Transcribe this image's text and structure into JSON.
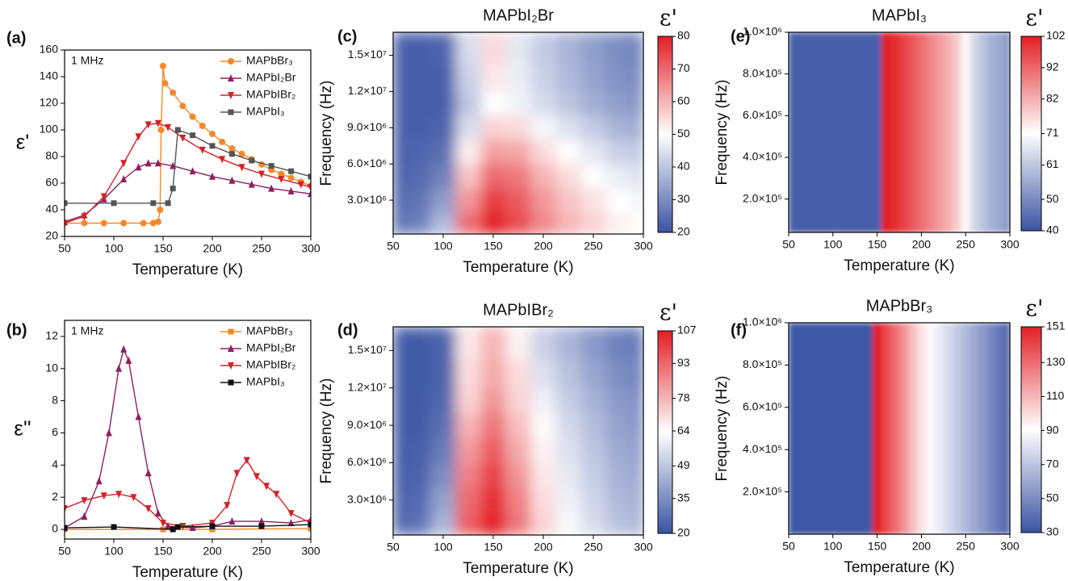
{
  "chart_data": [
    {
      "type": "line",
      "panel": "(a)",
      "annotation": "1 MHz",
      "xlabel": "Temperature (K)",
      "ylabel": "ε'",
      "xlim": [
        50,
        300
      ],
      "ylim": [
        20,
        160
      ],
      "xticks": [
        50,
        100,
        150,
        200,
        250,
        300
      ],
      "yticks": [
        20,
        40,
        60,
        80,
        100,
        120,
        140,
        160
      ],
      "legend": "upper right",
      "series": [
        {
          "name": "MAPbBr₃",
          "color": "#f5892a",
          "marker": "circle",
          "x": [
            50,
            70,
            90,
            110,
            130,
            140,
            145,
            147,
            148,
            150,
            152,
            160,
            170,
            180,
            190,
            200,
            210,
            220,
            230,
            240,
            250,
            260,
            270,
            280,
            290,
            300
          ],
          "values": [
            30,
            30,
            30,
            30,
            30,
            30,
            31,
            40,
            100,
            148,
            135,
            128,
            118,
            110,
            103,
            97,
            91,
            86,
            82,
            78,
            74,
            70,
            67,
            64,
            61,
            58
          ]
        },
        {
          "name": "MAPbI₂Br",
          "color": "#8e1f62",
          "marker": "triangle-up",
          "x": [
            50,
            70,
            90,
            110,
            125,
            135,
            145,
            160,
            180,
            200,
            220,
            240,
            260,
            280,
            300
          ],
          "values": [
            31,
            36,
            48,
            63,
            72,
            75,
            75,
            73,
            69,
            65,
            62,
            59,
            56,
            54,
            52
          ]
        },
        {
          "name": "MAPbIBr₂",
          "color": "#d62128",
          "marker": "triangle-down",
          "x": [
            50,
            70,
            90,
            110,
            125,
            135,
            145,
            155,
            170,
            190,
            210,
            230,
            250,
            270,
            290,
            300
          ],
          "values": [
            30,
            35,
            50,
            75,
            95,
            104,
            105,
            102,
            94,
            85,
            78,
            72,
            67,
            63,
            59,
            57
          ]
        },
        {
          "name": "MAPbI₃",
          "color": "#555555",
          "marker": "square",
          "x": [
            50,
            100,
            140,
            155,
            160,
            165,
            180,
            200,
            220,
            240,
            260,
            280,
            300
          ],
          "values": [
            45,
            45,
            45,
            45,
            56,
            100,
            96,
            88,
            82,
            77,
            73,
            69,
            65
          ]
        }
      ]
    },
    {
      "type": "line",
      "panel": "(b)",
      "annotation": "1 MHz",
      "xlabel": "Temperature (K)",
      "ylabel": "ε''",
      "xlim": [
        50,
        300
      ],
      "ylim": [
        -0.6,
        13
      ],
      "xticks": [
        50,
        100,
        150,
        200,
        250,
        300
      ],
      "yticks": [
        0,
        2,
        4,
        6,
        8,
        10,
        12
      ],
      "legend": "upper right",
      "series": [
        {
          "name": "MAPbBr₃",
          "color": "#f5892a",
          "marker": "square",
          "x": [
            50,
            150,
            200,
            300
          ],
          "values": [
            0,
            0,
            0,
            0.05
          ]
        },
        {
          "name": "MAPbI₂Br",
          "color": "#8e1f62",
          "marker": "triangle-up",
          "x": [
            50,
            70,
            85,
            95,
            105,
            110,
            115,
            125,
            135,
            145,
            155,
            180,
            200,
            220,
            250,
            280,
            300
          ],
          "values": [
            0.1,
            0.8,
            3,
            6,
            10,
            11.2,
            10.5,
            7,
            3.5,
            1,
            0.2,
            0.1,
            0.2,
            0.5,
            0.5,
            0.4,
            0.6
          ]
        },
        {
          "name": "MAPbIBr₂",
          "color": "#d62128",
          "marker": "triangle-down",
          "x": [
            50,
            70,
            90,
            105,
            120,
            135,
            150,
            170,
            200,
            215,
            225,
            235,
            245,
            255,
            265,
            280,
            300
          ],
          "values": [
            1.3,
            1.8,
            2.1,
            2.2,
            2,
            1.3,
            0.4,
            0.2,
            0.4,
            1.5,
            3.5,
            4.3,
            3.3,
            2.7,
            2.2,
            1,
            0.4
          ]
        },
        {
          "name": "MAPbI₃",
          "color": "#111111",
          "marker": "square",
          "x": [
            50,
            100,
            160,
            165,
            200,
            250,
            300
          ],
          "values": [
            0.1,
            0.15,
            0,
            0.15,
            0.2,
            0.2,
            0.3
          ]
        }
      ]
    },
    {
      "type": "heatmap",
      "panel": "(c)",
      "title": "MAPbI₂Br",
      "xlabel": "Temperature (K)",
      "ylabel": "Frequency (Hz)",
      "xlim": [
        50,
        300
      ],
      "ylim": [
        200000,
        16900000
      ],
      "xticks": [
        50,
        100,
        150,
        200,
        250,
        300
      ],
      "yticks": [
        {
          "value": 3000000,
          "label": "3.0×10⁶"
        },
        {
          "value": 6000000,
          "label": "6.0×10⁶"
        },
        {
          "value": 9000000,
          "label": "9.0×10⁶"
        },
        {
          "value": 12000000,
          "label": "1.2×10⁷"
        },
        {
          "value": 15000000,
          "label": "1.5×10⁷"
        }
      ],
      "x": [
        50,
        75,
        100,
        125,
        150,
        175,
        200,
        225,
        250,
        275,
        300
      ],
      "y": [
        1000000,
        3000000,
        5000000,
        7000000,
        9000000,
        11000000,
        13000000,
        15500000
      ],
      "z": [
        [
          24,
          28,
          38,
          70,
          80,
          74,
          66,
          60,
          56,
          52,
          50
        ],
        [
          23,
          26,
          33,
          64,
          76,
          72,
          64,
          58,
          54,
          50,
          48
        ],
        [
          22,
          24,
          28,
          58,
          70,
          68,
          60,
          55,
          50,
          47,
          44
        ],
        [
          22,
          23,
          25,
          52,
          63,
          62,
          55,
          50,
          46,
          42,
          40
        ],
        [
          22,
          22,
          23,
          44,
          56,
          55,
          49,
          45,
          41,
          37,
          35
        ],
        [
          22,
          22,
          22,
          40,
          50,
          48,
          44,
          40,
          36,
          33,
          31
        ],
        [
          22,
          22,
          22,
          42,
          53,
          47,
          42,
          38,
          34,
          31,
          29
        ],
        [
          22,
          22,
          23,
          44,
          55,
          46,
          41,
          37,
          33,
          30,
          28
        ]
      ],
      "colorbar_label": "ε'",
      "zlim": [
        20,
        80
      ],
      "zticks": [
        20,
        30,
        40,
        50,
        60,
        70,
        80
      ],
      "colormap": [
        "#3a53a4",
        "#ffffff",
        "#e31e24"
      ]
    },
    {
      "type": "heatmap",
      "panel": "(d)",
      "title": "MAPbIBr₂",
      "xlabel": "Temperature (K)",
      "ylabel": "Frequency (Hz)",
      "xlim": [
        50,
        300
      ],
      "ylim": [
        200000,
        16900000
      ],
      "xticks": [
        50,
        100,
        150,
        200,
        250,
        300
      ],
      "yticks": [
        {
          "value": 3000000,
          "label": "3.0×10⁶"
        },
        {
          "value": 6000000,
          "label": "6.0×10⁶"
        },
        {
          "value": 9000000,
          "label": "9.0×10⁶"
        },
        {
          "value": 12000000,
          "label": "1.2×10⁷"
        },
        {
          "value": 15000000,
          "label": "1.5×10⁷"
        }
      ],
      "x": [
        50,
        75,
        100,
        125,
        150,
        175,
        200,
        225,
        250,
        275,
        300
      ],
      "y": [
        1000000,
        3000000,
        5000000,
        7000000,
        9000000,
        11000000,
        13000000,
        15500000
      ],
      "z": [
        [
          24,
          28,
          45,
          95,
          107,
          90,
          72,
          62,
          55,
          48,
          44
        ],
        [
          23,
          26,
          40,
          92,
          104,
          88,
          70,
          60,
          53,
          46,
          42
        ],
        [
          22,
          24,
          35,
          88,
          100,
          84,
          68,
          58,
          51,
          44,
          40
        ],
        [
          22,
          23,
          30,
          83,
          95,
          80,
          66,
          56,
          49,
          42,
          38
        ],
        [
          22,
          22,
          27,
          78,
          90,
          76,
          64,
          54,
          47,
          40,
          36
        ],
        [
          22,
          22,
          25,
          72,
          84,
          72,
          60,
          51,
          44,
          38,
          34
        ],
        [
          22,
          22,
          24,
          70,
          80,
          70,
          56,
          48,
          41,
          35,
          31
        ],
        [
          22,
          22,
          24,
          68,
          78,
          66,
          52,
          45,
          38,
          32,
          29
        ]
      ],
      "colorbar_label": "ε'",
      "zlim": [
        20,
        107
      ],
      "zticks": [
        20,
        35,
        49,
        64,
        78,
        93,
        107
      ],
      "colormap": [
        "#3a53a4",
        "#ffffff",
        "#e31e24"
      ]
    },
    {
      "type": "heatmap",
      "panel": "(e)",
      "title": "MAPbI₃",
      "xlabel": "Temperature (K)",
      "ylabel": "Frequency (Hz)",
      "xlim": [
        50,
        300
      ],
      "ylim": [
        40000,
        1000000
      ],
      "xticks": [
        50,
        100,
        150,
        200,
        250,
        300
      ],
      "yticks": [
        {
          "value": 200000,
          "label": "2.0×10⁵"
        },
        {
          "value": 400000,
          "label": "4.0×10⁵"
        },
        {
          "value": 600000,
          "label": "6.0×10⁵"
        },
        {
          "value": 800000,
          "label": "8.0×10⁵"
        },
        {
          "value": 1000000,
          "label": "1.0×10⁶"
        }
      ],
      "x": [
        50,
        60,
        70,
        80,
        90,
        100,
        110,
        120,
        130,
        140,
        150,
        160,
        170,
        180,
        190,
        200,
        210,
        220,
        230,
        240,
        250,
        260,
        270,
        280,
        290,
        300
      ],
      "y": [
        250000,
        750000
      ],
      "z": [
        [
          42,
          42,
          42,
          42,
          42,
          42,
          42,
          42,
          42,
          42,
          42,
          102,
          100,
          97,
          94,
          91,
          88,
          85,
          82,
          78,
          72,
          64,
          60,
          57,
          55,
          52
        ],
        [
          42,
          42,
          42,
          42,
          42,
          42,
          42,
          42,
          42,
          42,
          42,
          102,
          100,
          97,
          94,
          91,
          88,
          85,
          82,
          78,
          72,
          64,
          60,
          57,
          55,
          52
        ]
      ],
      "colorbar_label": "ε'",
      "zlim": [
        40,
        102
      ],
      "zticks": [
        40,
        50,
        61,
        71,
        82,
        92,
        102
      ],
      "colormap": [
        "#3a53a4",
        "#ffffff",
        "#e31e24"
      ]
    },
    {
      "type": "heatmap",
      "panel": "(f)",
      "title": "MAPbBr₃",
      "xlabel": "Temperature (K)",
      "ylabel": "Frequency (Hz)",
      "xlim": [
        50,
        300
      ],
      "ylim": [
        0,
        1000000
      ],
      "xticks": [
        50,
        100,
        150,
        200,
        250,
        300
      ],
      "yticks": [
        {
          "value": 200000,
          "label": "2.0×10⁵"
        },
        {
          "value": 400000,
          "label": "4.0×10⁵"
        },
        {
          "value": 600000,
          "label": "6.0×10⁵"
        },
        {
          "value": 800000,
          "label": "8.0×10⁵"
        },
        {
          "value": 1000000,
          "label": "1.0×10⁶"
        }
      ],
      "x": [
        50,
        60,
        70,
        80,
        90,
        100,
        110,
        120,
        130,
        140,
        150,
        160,
        170,
        180,
        190,
        200,
        210,
        220,
        230,
        240,
        250,
        260,
        270,
        280,
        290,
        300
      ],
      "y": [
        250000,
        750000
      ],
      "z": [
        [
          31,
          31,
          31,
          31,
          31,
          31,
          31,
          31,
          31,
          31,
          151,
          140,
          130,
          120,
          108,
          98,
          92,
          84,
          78,
          72,
          66,
          60,
          54,
          48,
          42,
          38
        ],
        [
          31,
          31,
          31,
          31,
          31,
          31,
          31,
          31,
          31,
          31,
          151,
          140,
          130,
          120,
          108,
          98,
          92,
          84,
          78,
          72,
          66,
          60,
          54,
          48,
          42,
          38
        ]
      ],
      "colorbar_label": "ε'",
      "zlim": [
        30,
        151
      ],
      "zticks": [
        30,
        50,
        70,
        90,
        110,
        130,
        151
      ],
      "colormap": [
        "#3a53a4",
        "#ffffff",
        "#e31e24"
      ]
    }
  ]
}
